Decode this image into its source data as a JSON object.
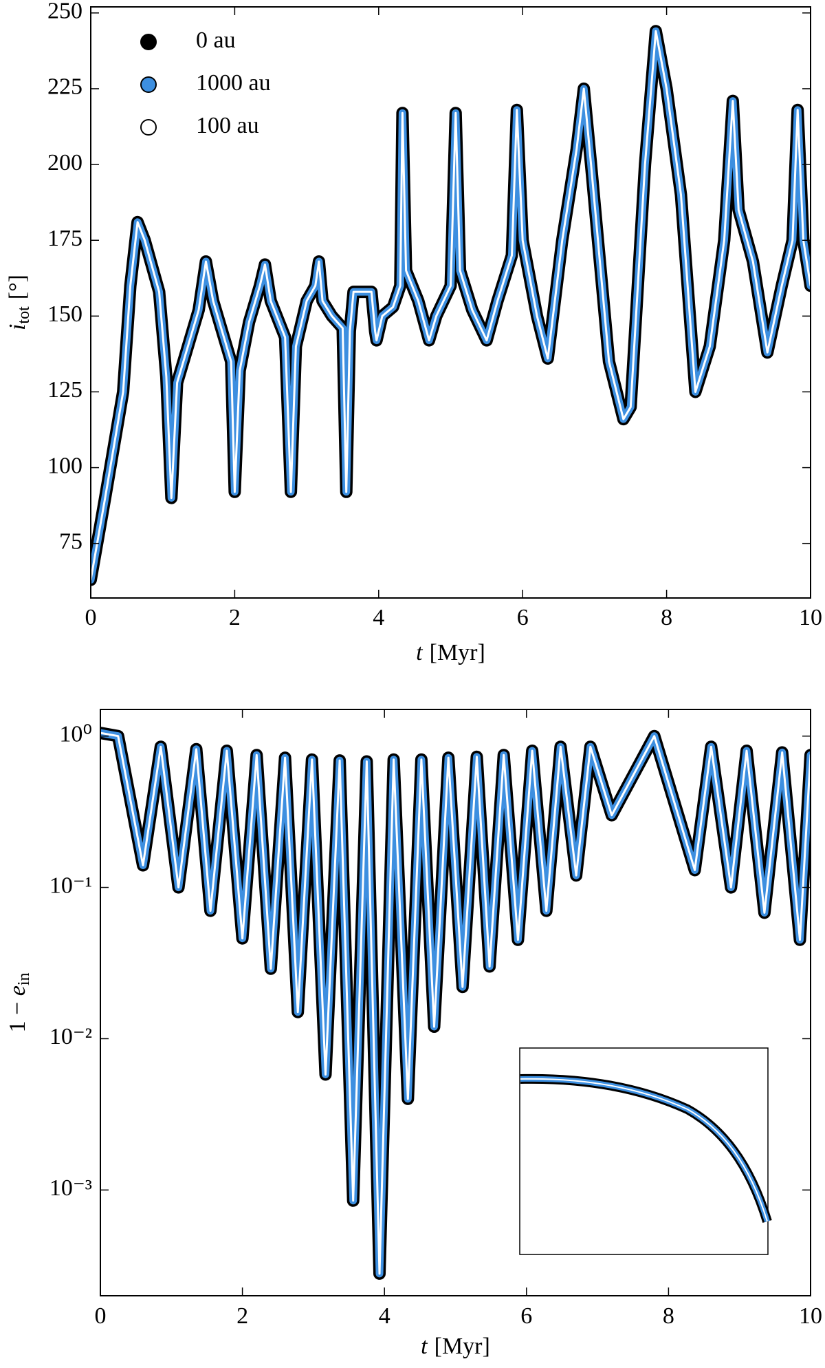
{
  "chart_data": [
    {
      "type": "line",
      "xlabel": {
        "symbol": "t",
        "unit": "[Myr]"
      },
      "ylabel": {
        "symbol": "i",
        "subscript": "tot",
        "unit": "[°]"
      },
      "xlim": [
        0,
        10
      ],
      "xticks": [
        0,
        2,
        4,
        6,
        8,
        10
      ],
      "ylim": [
        57,
        252
      ],
      "yticks": [
        75,
        100,
        125,
        150,
        175,
        200,
        225,
        250
      ],
      "legend": "upper left",
      "x": [
        0,
        0.2,
        0.45,
        0.55,
        0.65,
        0.75,
        0.95,
        1.05,
        1.12,
        1.2,
        1.35,
        1.5,
        1.6,
        1.7,
        1.85,
        1.95,
        2.0,
        2.07,
        2.2,
        2.35,
        2.42,
        2.5,
        2.7,
        2.78,
        2.85,
        3.0,
        3.12,
        3.17,
        3.22,
        3.35,
        3.5,
        3.55,
        3.6,
        3.65,
        3.9,
        3.95,
        3.97,
        4.05,
        4.2,
        4.3,
        4.33,
        4.38,
        4.55,
        4.7,
        4.8,
        5.0,
        5.07,
        5.13,
        5.3,
        5.5,
        5.65,
        5.85,
        5.92,
        6.0,
        6.2,
        6.35,
        6.55,
        6.75,
        6.85,
        6.95,
        7.2,
        7.4,
        7.5,
        7.7,
        7.85,
        8.0,
        8.2,
        8.4,
        8.6,
        8.8,
        8.92,
        9.0,
        9.2,
        9.4,
        9.6,
        9.75,
        9.82,
        9.9,
        10
      ],
      "series": [
        {
          "name": "0 au",
          "color": "#000000",
          "values": [
            63,
            90,
            125,
            160,
            181,
            175,
            158,
            130,
            90,
            128,
            140,
            152,
            168,
            155,
            143,
            135,
            92,
            132,
            148,
            160,
            167,
            155,
            143,
            92,
            140,
            155,
            160,
            168,
            155,
            150,
            146,
            92,
            145,
            158,
            158,
            145,
            142,
            150,
            153,
            160,
            217,
            165,
            155,
            142,
            150,
            160,
            217,
            165,
            152,
            142,
            155,
            170,
            218,
            175,
            150,
            136,
            175,
            205,
            225,
            200,
            135,
            116,
            120,
            200,
            244,
            225,
            190,
            125,
            140,
            175,
            221,
            185,
            168,
            138,
            160,
            175,
            218,
            175,
            160
          ]
        },
        {
          "name": "1000 au",
          "color": "#3d8fe0",
          "values": [
            63,
            90,
            125,
            160,
            181,
            175,
            158,
            130,
            90,
            128,
            140,
            152,
            168,
            155,
            143,
            135,
            92,
            132,
            148,
            160,
            167,
            155,
            143,
            92,
            140,
            155,
            160,
            168,
            155,
            150,
            146,
            92,
            145,
            158,
            158,
            145,
            142,
            150,
            153,
            160,
            217,
            165,
            155,
            142,
            150,
            160,
            217,
            165,
            152,
            142,
            155,
            170,
            218,
            175,
            150,
            136,
            175,
            205,
            225,
            200,
            135,
            116,
            120,
            200,
            244,
            225,
            190,
            125,
            140,
            175,
            221,
            185,
            168,
            138,
            160,
            175,
            218,
            175,
            160
          ]
        },
        {
          "name": "100 au",
          "color": "#ffffff",
          "values": [
            63,
            90,
            125,
            160,
            181,
            175,
            158,
            130,
            90,
            128,
            140,
            152,
            168,
            155,
            143,
            135,
            92,
            132,
            148,
            160,
            167,
            155,
            143,
            92,
            140,
            155,
            160,
            168,
            155,
            150,
            146,
            92,
            145,
            158,
            158,
            145,
            142,
            150,
            153,
            160,
            217,
            165,
            155,
            142,
            150,
            160,
            217,
            165,
            152,
            142,
            155,
            170,
            218,
            175,
            150,
            136,
            175,
            205,
            225,
            200,
            135,
            116,
            120,
            200,
            244,
            225,
            190,
            125,
            140,
            175,
            221,
            185,
            168,
            138,
            160,
            175,
            218,
            175,
            160
          ]
        }
      ]
    },
    {
      "type": "line",
      "xlabel": {
        "symbol": "t",
        "unit": "[Myr]"
      },
      "ylabel": {
        "prefix": "1 − ",
        "symbol": "e",
        "subscript": "in"
      },
      "xlim": [
        0,
        10
      ],
      "xticks": [
        0,
        2,
        4,
        6,
        8,
        10
      ],
      "yscale": "log",
      "ylim": [
        0.0002,
        1.5
      ],
      "yticks": [
        {
          "value": 1,
          "label": "10⁰"
        },
        {
          "value": 0.1,
          "label": "10⁻¹"
        },
        {
          "value": 0.01,
          "label": "10⁻²"
        },
        {
          "value": 0.001,
          "label": "10⁻³"
        }
      ],
      "x": [
        0,
        0.25,
        0.6,
        0.85,
        1.1,
        1.35,
        1.55,
        1.78,
        2.0,
        2.2,
        2.4,
        2.6,
        2.78,
        2.98,
        3.17,
        3.37,
        3.56,
        3.75,
        3.93,
        4.13,
        4.33,
        4.52,
        4.7,
        4.9,
        5.1,
        5.3,
        5.48,
        5.68,
        5.88,
        6.08,
        6.28,
        6.48,
        6.7,
        6.9,
        7.2,
        7.8,
        8.37,
        8.6,
        8.88,
        9.1,
        9.35,
        9.6,
        9.85,
        10
      ],
      "series": [
        {
          "color": "#000000",
          "values": [
            1.05,
            1.0,
            0.14,
            0.85,
            0.1,
            0.82,
            0.07,
            0.8,
            0.046,
            0.75,
            0.029,
            0.72,
            0.015,
            0.7,
            0.0058,
            0.69,
            0.00085,
            0.68,
            0.00028,
            0.7,
            0.004,
            0.7,
            0.012,
            0.72,
            0.022,
            0.73,
            0.03,
            0.75,
            0.045,
            0.8,
            0.07,
            0.85,
            0.12,
            0.85,
            0.3,
            1.0,
            0.13,
            0.85,
            0.1,
            0.8,
            0.068,
            0.78,
            0.045,
            0.75
          ]
        },
        {
          "color": "#3d8fe0",
          "values": [
            1.05,
            1.0,
            0.14,
            0.85,
            0.1,
            0.82,
            0.07,
            0.8,
            0.046,
            0.75,
            0.029,
            0.72,
            0.015,
            0.7,
            0.0058,
            0.69,
            0.00085,
            0.68,
            0.00028,
            0.7,
            0.004,
            0.7,
            0.012,
            0.72,
            0.022,
            0.73,
            0.03,
            0.75,
            0.045,
            0.8,
            0.07,
            0.85,
            0.12,
            0.85,
            0.3,
            1.0,
            0.13,
            0.85,
            0.1,
            0.8,
            0.068,
            0.78,
            0.045,
            0.75
          ]
        },
        {
          "color": "#ffffff",
          "values": [
            1.05,
            1.0,
            0.14,
            0.85,
            0.1,
            0.82,
            0.07,
            0.8,
            0.046,
            0.75,
            0.029,
            0.72,
            0.015,
            0.7,
            0.0058,
            0.69,
            0.00085,
            0.68,
            0.00028,
            0.7,
            0.004,
            0.7,
            0.012,
            0.72,
            0.022,
            0.73,
            0.03,
            0.75,
            0.045,
            0.8,
            0.07,
            0.85,
            0.12,
            0.85,
            0.3,
            1.0,
            0.13,
            0.85,
            0.1,
            0.8,
            0.068,
            0.78,
            0.045,
            0.75
          ]
        }
      ]
    }
  ]
}
